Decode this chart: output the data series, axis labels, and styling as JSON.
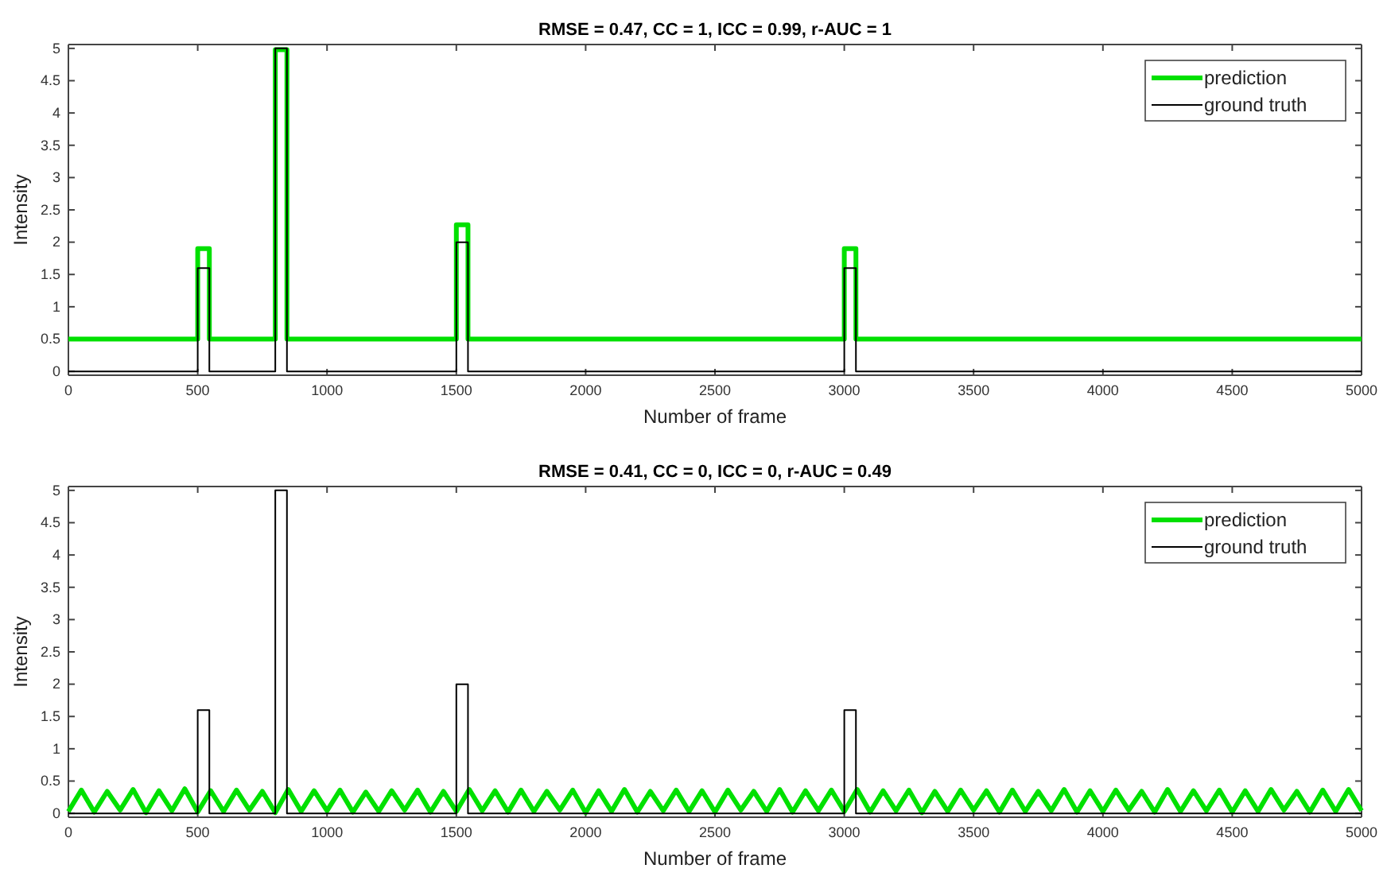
{
  "chart_data": [
    {
      "type": "line",
      "title": "RMSE = 0.47, CC = 1, ICC = 0.99, r-AUC = 1",
      "xlabel": "Number of frame",
      "ylabel": "Intensity",
      "xlim": [
        0,
        5000
      ],
      "ylim": [
        -0.06,
        5.06
      ],
      "xticks": [
        0,
        500,
        1000,
        1500,
        2000,
        2500,
        3000,
        3500,
        4000,
        4500,
        5000
      ],
      "yticks": [
        0,
        0.5,
        1,
        1.5,
        2,
        2.5,
        3,
        3.5,
        4,
        4.5,
        5
      ],
      "legend": "top right",
      "grid": false,
      "series": [
        {
          "name": "prediction",
          "color": "#00e000",
          "x": [
            0,
            500,
            500,
            545,
            545,
            800,
            800,
            845,
            845,
            1500,
            1500,
            1545,
            1545,
            3000,
            3000,
            3045,
            3045,
            5000
          ],
          "values": [
            0.5,
            0.5,
            1.9,
            1.9,
            0.5,
            0.5,
            4.98,
            4.98,
            0.5,
            0.5,
            2.27,
            2.27,
            0.5,
            0.5,
            1.9,
            1.9,
            0.5,
            0.5
          ]
        },
        {
          "name": "ground truth",
          "color": "#000000",
          "x": [
            0,
            500,
            500,
            545,
            545,
            800,
            800,
            845,
            845,
            1500,
            1500,
            1545,
            1545,
            3000,
            3000,
            3045,
            3045,
            5000
          ],
          "values": [
            0,
            0,
            1.6,
            1.6,
            0,
            0,
            5,
            5,
            0,
            0,
            2,
            2,
            0,
            0,
            1.6,
            1.6,
            0,
            0
          ]
        }
      ]
    },
    {
      "type": "line",
      "title": "RMSE = 0.41, CC = 0, ICC = 0, r-AUC = 0.49",
      "xlabel": "Number of frame",
      "ylabel": "Intensity",
      "xlim": [
        0,
        5000
      ],
      "ylim": [
        -0.06,
        5.06
      ],
      "xticks": [
        0,
        500,
        1000,
        1500,
        2000,
        2500,
        3000,
        3500,
        4000,
        4500,
        5000
      ],
      "yticks": [
        0,
        0.5,
        1,
        1.5,
        2,
        2.5,
        3,
        3.5,
        4,
        4.5,
        5
      ],
      "legend": "top right",
      "grid": false,
      "series": [
        {
          "name": "prediction",
          "color": "#00e000",
          "x": [
            0,
            50,
            100,
            150,
            200,
            250,
            300,
            350,
            400,
            450,
            500,
            550,
            600,
            650,
            700,
            750,
            800,
            850,
            900,
            950,
            1000,
            1050,
            1100,
            1150,
            1200,
            1250,
            1300,
            1350,
            1400,
            1450,
            1500,
            1550,
            1600,
            1650,
            1700,
            1750,
            1800,
            1850,
            1900,
            1950,
            2000,
            2050,
            2100,
            2150,
            2200,
            2250,
            2300,
            2350,
            2400,
            2450,
            2500,
            2550,
            2600,
            2650,
            2700,
            2750,
            2800,
            2850,
            2900,
            2950,
            3000,
            3050,
            3100,
            3150,
            3200,
            3250,
            3300,
            3350,
            3400,
            3450,
            3500,
            3550,
            3600,
            3650,
            3700,
            3750,
            3800,
            3850,
            3900,
            3950,
            4000,
            4050,
            4100,
            4150,
            4200,
            4250,
            4300,
            4350,
            4400,
            4450,
            4500,
            4550,
            4600,
            4650,
            4700,
            4750,
            4800,
            4850,
            4900,
            4950,
            5000
          ],
          "values": [
            0.03,
            0.36,
            0.02,
            0.34,
            0.05,
            0.37,
            0.01,
            0.35,
            0.04,
            0.38,
            0.02,
            0.35,
            0.03,
            0.36,
            0.05,
            0.34,
            0.01,
            0.37,
            0.03,
            0.35,
            0.04,
            0.36,
            0.02,
            0.33,
            0.03,
            0.35,
            0.05,
            0.36,
            0.02,
            0.34,
            0.03,
            0.37,
            0.04,
            0.35,
            0.02,
            0.36,
            0.03,
            0.34,
            0.05,
            0.36,
            0.01,
            0.35,
            0.03,
            0.37,
            0.02,
            0.34,
            0.04,
            0.36,
            0.03,
            0.35,
            0.02,
            0.36,
            0.05,
            0.34,
            0.03,
            0.37,
            0.02,
            0.35,
            0.04,
            0.36,
            0.03,
            0.37,
            0.02,
            0.35,
            0.04,
            0.36,
            0.01,
            0.34,
            0.03,
            0.36,
            0.05,
            0.35,
            0.02,
            0.36,
            0.03,
            0.34,
            0.04,
            0.37,
            0.02,
            0.35,
            0.03,
            0.36,
            0.05,
            0.34,
            0.02,
            0.37,
            0.03,
            0.35,
            0.04,
            0.36,
            0.02,
            0.35,
            0.03,
            0.37,
            0.05,
            0.34,
            0.02,
            0.36,
            0.03,
            0.37,
            0.04
          ]
        },
        {
          "name": "ground truth",
          "color": "#000000",
          "x": [
            0,
            500,
            500,
            545,
            545,
            800,
            800,
            845,
            845,
            1500,
            1500,
            1545,
            1545,
            3000,
            3000,
            3045,
            3045,
            5000
          ],
          "values": [
            0,
            0,
            1.6,
            1.6,
            0,
            0,
            5,
            5,
            0,
            0,
            2,
            2,
            0,
            0,
            1.6,
            1.6,
            0,
            0
          ]
        }
      ]
    }
  ]
}
